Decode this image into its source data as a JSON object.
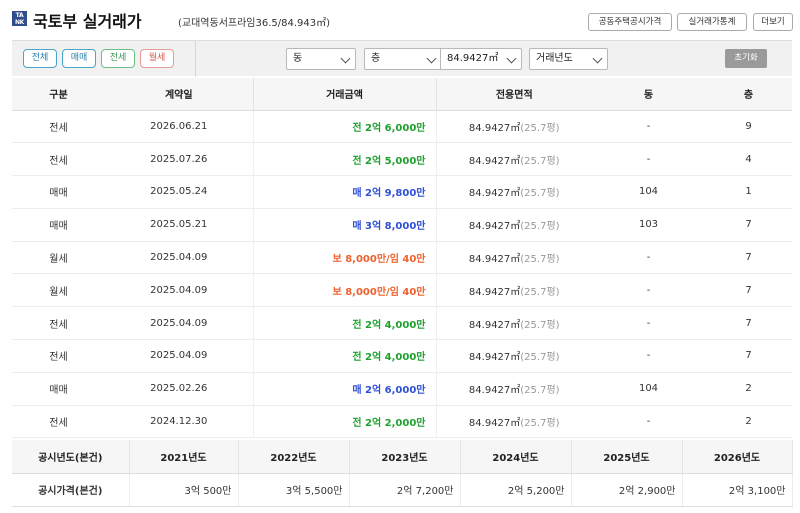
{
  "header": {
    "title": "국토부 실거래가",
    "subtitle": "(교대역동서프라임36.5/84.943㎡)",
    "buttons": [
      "공동주택공시가격",
      "실거래가통계",
      "더보기"
    ]
  },
  "filters": {
    "type_pills": [
      "전체",
      "매매",
      "전세",
      "월세"
    ],
    "dong_select": "동",
    "floor_select": "층",
    "area_select": "84.9427㎡",
    "year_select": "거래년도",
    "reset_label": "초기화"
  },
  "colors": {
    "jeonse": "#1fa02e",
    "sale": "#2e4fd6",
    "monthly": "#f0612d"
  },
  "table": {
    "headers": [
      "구분",
      "계약일",
      "거래금액",
      "전용면적",
      "동",
      "층"
    ],
    "rows": [
      {
        "type": "전세",
        "date": "2026.06.21",
        "price": "전 2억 6,000만",
        "kind": "jeonse",
        "area": "84.9427㎡",
        "pyeong": "(25.7평)",
        "dong": "-",
        "floor": "9"
      },
      {
        "type": "전세",
        "date": "2025.07.26",
        "price": "전 2억 5,000만",
        "kind": "jeonse",
        "area": "84.9427㎡",
        "pyeong": "(25.7평)",
        "dong": "-",
        "floor": "4"
      },
      {
        "type": "매매",
        "date": "2025.05.24",
        "price": "매 2억 9,800만",
        "kind": "sale",
        "area": "84.9427㎡",
        "pyeong": "(25.7평)",
        "dong": "104",
        "floor": "1"
      },
      {
        "type": "매매",
        "date": "2025.05.21",
        "price": "매 3억 8,000만",
        "kind": "sale",
        "area": "84.9427㎡",
        "pyeong": "(25.7평)",
        "dong": "103",
        "floor": "7"
      },
      {
        "type": "월세",
        "date": "2025.04.09",
        "price": "보 8,000만/임 40만",
        "kind": "monthly",
        "area": "84.9427㎡",
        "pyeong": "(25.7평)",
        "dong": "-",
        "floor": "7"
      },
      {
        "type": "월세",
        "date": "2025.04.09",
        "price": "보 8,000만/임 40만",
        "kind": "monthly",
        "area": "84.9427㎡",
        "pyeong": "(25.7평)",
        "dong": "-",
        "floor": "7"
      },
      {
        "type": "전세",
        "date": "2025.04.09",
        "price": "전 2억 4,000만",
        "kind": "jeonse",
        "area": "84.9427㎡",
        "pyeong": "(25.7평)",
        "dong": "-",
        "floor": "7"
      },
      {
        "type": "전세",
        "date": "2025.04.09",
        "price": "전 2억 4,000만",
        "kind": "jeonse",
        "area": "84.9427㎡",
        "pyeong": "(25.7평)",
        "dong": "-",
        "floor": "7"
      },
      {
        "type": "매매",
        "date": "2025.02.26",
        "price": "매 2억 6,000만",
        "kind": "sale",
        "area": "84.9427㎡",
        "pyeong": "(25.7평)",
        "dong": "104",
        "floor": "2"
      },
      {
        "type": "전세",
        "date": "2024.12.30",
        "price": "전 2억 2,000만",
        "kind": "jeonse",
        "area": "84.9427㎡",
        "pyeong": "(25.7평)",
        "dong": "-",
        "floor": "2"
      }
    ]
  },
  "official": {
    "year_label": "공시년도(본건)",
    "price_label": "공시가격(본건)",
    "years": [
      "2021년도",
      "2022년도",
      "2023년도",
      "2024년도",
      "2025년도",
      "2026년도"
    ],
    "prices": [
      "3억 500만",
      "3억 5,500만",
      "2억 7,200만",
      "2억 5,200만",
      "2억 2,900만",
      "2억 3,100만"
    ]
  }
}
